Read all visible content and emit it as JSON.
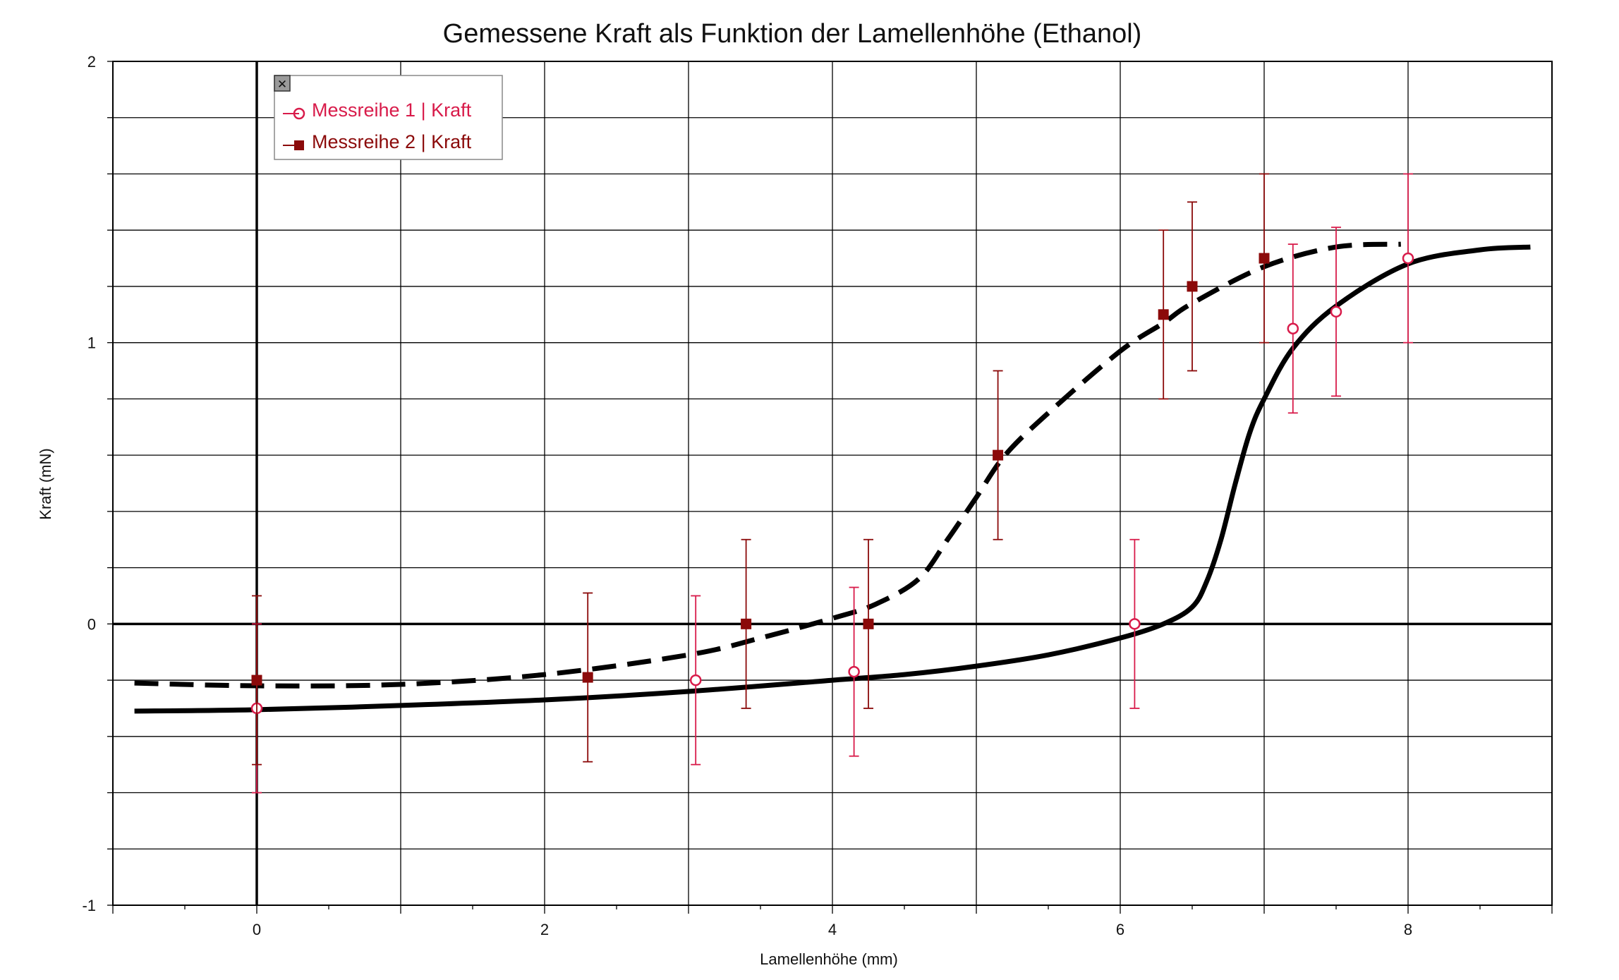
{
  "chart_data": {
    "type": "scatter",
    "title": "Gemessene Kraft als Funktion der Lamellenhöhe (Ethanol)",
    "xlabel": "Lamellenhöhe (mm)",
    "ylabel": "Kraft (mN)",
    "xlim": [
      -1,
      9
    ],
    "ylim": [
      -1,
      2
    ],
    "x_ticks": [
      0,
      2,
      4,
      6,
      8
    ],
    "y_ticks": [
      -1,
      0,
      1,
      2
    ],
    "x_tick_labels": [
      "0",
      "2",
      "4",
      "6",
      "8"
    ],
    "y_tick_labels": [
      "-1",
      "0",
      "1",
      "2"
    ],
    "grid": true,
    "legend_position": "top-left",
    "series": [
      {
        "name": "Messreihe 1 | Kraft",
        "color": "#d81b4a",
        "marker": "open-circle",
        "x": [
          0,
          3.05,
          4.15,
          6.1,
          7.2,
          7.5,
          8.0
        ],
        "y": [
          -0.3,
          -0.2,
          -0.17,
          0.0,
          1.05,
          1.11,
          1.3
        ],
        "y_err_low": [
          -0.6,
          -0.5,
          -0.47,
          -0.3,
          0.75,
          0.81,
          1.0
        ],
        "y_err_high": [
          0.0,
          0.1,
          0.13,
          0.3,
          1.35,
          1.41,
          1.6
        ]
      },
      {
        "name": "Messreihe 2 | Kraft",
        "color": "#8b0a0a",
        "marker": "filled-square",
        "x": [
          0,
          2.3,
          3.4,
          4.25,
          5.15,
          6.3,
          6.5,
          7.0
        ],
        "y": [
          -0.2,
          -0.19,
          0.0,
          0.0,
          0.6,
          1.1,
          1.2,
          1.3
        ],
        "y_err_low": [
          -0.5,
          -0.49,
          -0.3,
          -0.3,
          0.3,
          0.8,
          0.9,
          1.0
        ],
        "y_err_high": [
          0.1,
          0.11,
          0.3,
          0.3,
          0.9,
          1.4,
          1.5,
          1.6
        ]
      }
    ],
    "fits": [
      {
        "style": "solid",
        "color": "#000000",
        "x": [
          -0.85,
          0,
          1,
          2,
          3,
          4,
          4.5,
          5,
          5.5,
          6,
          6.3,
          6.5,
          6.6,
          6.7,
          6.8,
          6.9,
          7.0,
          7.2,
          7.5,
          8.0,
          8.5,
          8.85
        ],
        "y": [
          -0.31,
          -0.305,
          -0.29,
          -0.27,
          -0.24,
          -0.2,
          -0.18,
          -0.15,
          -0.11,
          -0.05,
          0.0,
          0.06,
          0.15,
          0.3,
          0.5,
          0.68,
          0.8,
          0.98,
          1.13,
          1.28,
          1.33,
          1.34
        ]
      },
      {
        "style": "dashed",
        "color": "#000000",
        "x": [
          -0.85,
          0,
          1,
          2,
          3,
          3.5,
          4,
          4.3,
          4.6,
          4.8,
          5.0,
          5.2,
          5.5,
          6.0,
          6.3,
          6.5,
          7.0,
          7.5,
          7.95
        ],
        "y": [
          -0.21,
          -0.22,
          -0.215,
          -0.18,
          -0.11,
          -0.05,
          0.02,
          0.07,
          0.16,
          0.3,
          0.45,
          0.6,
          0.75,
          0.97,
          1.07,
          1.14,
          1.27,
          1.34,
          1.35
        ]
      }
    ]
  },
  "legend": {
    "close_glyph": "✕",
    "items": [
      {
        "label": "Messreihe 1 | Kraft",
        "color": "#d81b4a"
      },
      {
        "label": "Messreihe 2 | Kraft",
        "color": "#8b0a0a"
      }
    ]
  }
}
